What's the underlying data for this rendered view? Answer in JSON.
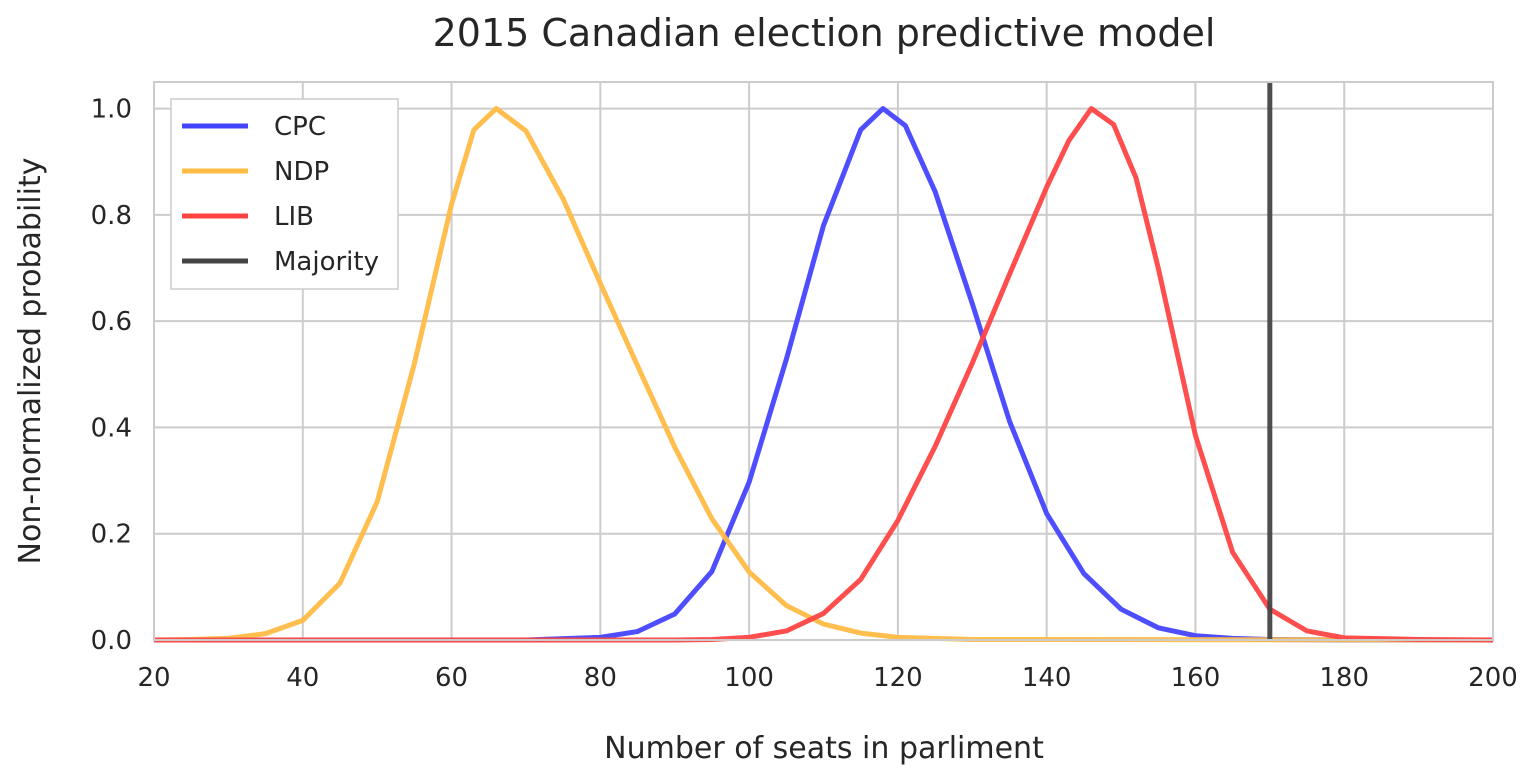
{
  "chart_data": {
    "type": "line",
    "title": "2015 Canadian election predictive model",
    "xlabel": "Number of seats in parliment",
    "ylabel": "Non-normalized probability",
    "xlim": [
      20,
      200
    ],
    "ylim": [
      0,
      1.05
    ],
    "xticks": [
      "20",
      "40",
      "60",
      "80",
      "100",
      "120",
      "140",
      "160",
      "180",
      "200"
    ],
    "yticks": [
      "0.0",
      "0.2",
      "0.4",
      "0.6",
      "0.8",
      "1.0"
    ],
    "grid": true,
    "legend_position": "top-left",
    "series": [
      {
        "name": "CPC",
        "color": "#4444ff",
        "x": [
          20,
          70,
          80,
          85,
          90,
          95,
          100,
          105,
          110,
          115,
          118,
          121,
          125,
          130,
          135,
          140,
          145,
          150,
          155,
          160,
          165,
          170,
          180,
          200
        ],
        "y": [
          0,
          0,
          0.005,
          0.016,
          0.049,
          0.129,
          0.297,
          0.528,
          0.78,
          0.96,
          1.0,
          0.968,
          0.844,
          0.633,
          0.412,
          0.238,
          0.125,
          0.058,
          0.023,
          0.008,
          0.003,
          0.001,
          0,
          0
        ]
      },
      {
        "name": "NDP",
        "color": "#ffbb44",
        "x": [
          20,
          25,
          30,
          35,
          40,
          45,
          50,
          55,
          60,
          63,
          66,
          70,
          75,
          80,
          85,
          90,
          95,
          100,
          105,
          110,
          115,
          120,
          130,
          200
        ],
        "y": [
          0,
          0.001,
          0.003,
          0.012,
          0.037,
          0.107,
          0.26,
          0.52,
          0.82,
          0.96,
          1.0,
          0.958,
          0.83,
          0.671,
          0.516,
          0.363,
          0.228,
          0.128,
          0.065,
          0.03,
          0.013,
          0.005,
          0.001,
          0
        ]
      },
      {
        "name": "LIB",
        "color": "#ff4444",
        "x": [
          20,
          90,
          95,
          100,
          105,
          110,
          115,
          120,
          125,
          130,
          135,
          140,
          143,
          146,
          149,
          152,
          155,
          160,
          165,
          170,
          175,
          180,
          190,
          200
        ],
        "y": [
          0,
          0,
          0.001,
          0.005,
          0.017,
          0.05,
          0.114,
          0.225,
          0.364,
          0.521,
          0.688,
          0.852,
          0.94,
          1.0,
          0.97,
          0.87,
          0.7,
          0.385,
          0.165,
          0.058,
          0.017,
          0.004,
          0.001,
          0
        ]
      },
      {
        "name": "Majority",
        "color": "#444444",
        "x": [
          170,
          170
        ],
        "y": [
          0,
          1.05
        ]
      }
    ]
  }
}
